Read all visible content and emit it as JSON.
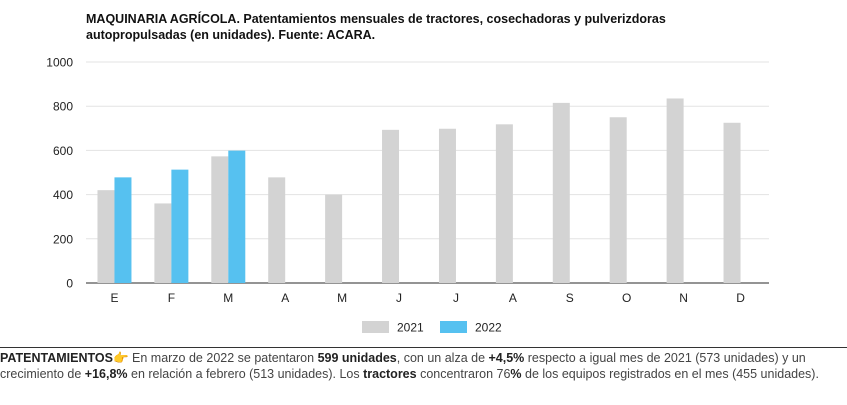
{
  "chart_data": {
    "type": "bar",
    "title": "MAQUINARIA AGRÍCOLA. Patentamientos mensuales de tractores, cosechadoras y pulverizdoras autopropulsadas (en unidades). Fuente: ACARA.",
    "categories": [
      "E",
      "F",
      "M",
      "A",
      "M",
      "J",
      "J",
      "A",
      "S",
      "O",
      "N",
      "D"
    ],
    "series": [
      {
        "name": "2021",
        "color": "#d3d3d3",
        "values": [
          420,
          360,
          573,
          478,
          400,
          693,
          698,
          718,
          815,
          750,
          835,
          725
        ]
      },
      {
        "name": "2022",
        "color": "#56c1f0",
        "values": [
          478,
          513,
          599,
          null,
          null,
          null,
          null,
          null,
          null,
          null,
          null,
          null
        ]
      }
    ],
    "yticks": [
      0,
      200,
      400,
      600,
      800,
      1000
    ],
    "ylim": [
      0,
      1000
    ],
    "grid": true,
    "legend_position": "bottom-center"
  },
  "caption": {
    "lead": "PATENTAMIENTOS",
    "icon": "pointing-hand-icon",
    "t1": " En marzo de 2022 se patentaron ",
    "b1": "599 unidades",
    "t2": ", con un alza de ",
    "b2": "+4,5%",
    "t3": " respecto a igual mes de 2021 (573 unidades) y un crecimiento de ",
    "b3": "+16,8%",
    "t4": " en relación a febrero (513 unidades). Los ",
    "b4": "tractores",
    "t5": " concentraron 76",
    "b5": "%",
    "t6": " de los equipos registrados en el mes (455 unidades)."
  }
}
